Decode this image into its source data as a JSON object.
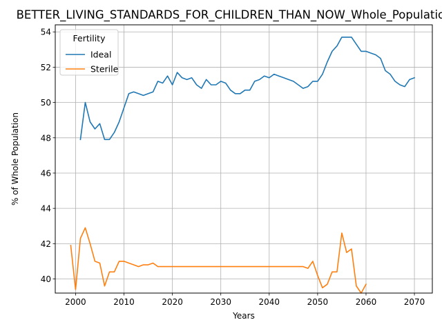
{
  "chart_data": {
    "type": "line",
    "title": "BETTER_LIVING_STANDARDS_FOR_CHILDREN_THAN_NOW_Whole_Population_Sc",
    "xlabel": "Years",
    "ylabel": "% of Whole Population",
    "xlim": [
      1995.8,
      2073.7
    ],
    "ylim": [
      39.2,
      54.4
    ],
    "xticks": [
      2000,
      2010,
      2020,
      2030,
      2040,
      2050,
      2060,
      2070
    ],
    "yticks": [
      40,
      42,
      44,
      46,
      48,
      50,
      52,
      54
    ],
    "grid": true,
    "legend": {
      "title": "Fertility",
      "placement": "top-left"
    },
    "series": [
      {
        "name": "Ideal",
        "color": "#1f77b4",
        "x": [
          2001,
          2002,
          2003,
          2004,
          2005,
          2006,
          2007,
          2008,
          2009,
          2010,
          2011,
          2012,
          2013,
          2014,
          2015,
          2016,
          2017,
          2018,
          2019,
          2020,
          2021,
          2022,
          2023,
          2024,
          2025,
          2026,
          2027,
          2028,
          2029,
          2030,
          2031,
          2032,
          2033,
          2034,
          2035,
          2036,
          2037,
          2038,
          2039,
          2040,
          2041,
          2042,
          2043,
          2044,
          2045,
          2046,
          2047,
          2048,
          2049,
          2050,
          2051,
          2052,
          2053,
          2054,
          2055,
          2056,
          2057,
          2058,
          2059,
          2060,
          2061,
          2062,
          2063,
          2064,
          2065,
          2066,
          2067,
          2068,
          2069,
          2070
        ],
        "values": [
          47.9,
          50.0,
          48.9,
          48.5,
          48.8,
          47.9,
          47.9,
          48.3,
          48.9,
          49.7,
          50.5,
          50.6,
          50.5,
          50.4,
          50.5,
          50.6,
          51.2,
          51.1,
          51.5,
          51.0,
          51.7,
          51.4,
          51.3,
          51.4,
          51.0,
          50.8,
          51.3,
          51.0,
          51.0,
          51.2,
          51.1,
          50.7,
          50.5,
          50.5,
          50.7,
          50.7,
          51.2,
          51.3,
          51.5,
          51.4,
          51.6,
          51.5,
          51.4,
          51.3,
          51.2,
          51.0,
          50.8,
          50.9,
          51.2,
          51.2,
          51.6,
          52.3,
          52.9,
          53.2,
          53.7,
          53.7,
          53.7,
          53.3,
          52.9,
          52.9,
          52.8,
          52.7,
          52.5,
          51.8,
          51.6,
          51.2,
          51.0,
          50.9,
          51.3,
          51.4
        ]
      },
      {
        "name": "Sterile",
        "color": "#ff7f0e",
        "x": [
          1999,
          2000,
          2001,
          2002,
          2003,
          2004,
          2005,
          2006,
          2007,
          2008,
          2009,
          2010,
          2011,
          2012,
          2013,
          2014,
          2015,
          2016,
          2017,
          2018,
          2019,
          2020,
          2021,
          2022,
          2023,
          2024,
          2025,
          2026,
          2027,
          2028,
          2029,
          2030,
          2031,
          2032,
          2033,
          2034,
          2035,
          2036,
          2037,
          2038,
          2039,
          2040,
          2041,
          2042,
          2043,
          2044,
          2045,
          2046,
          2047,
          2048,
          2049,
          2050,
          2051,
          2052,
          2053,
          2054,
          2055,
          2056,
          2057,
          2058,
          2059,
          2060
        ],
        "values": [
          41.9,
          39.4,
          42.3,
          42.9,
          42.0,
          41.0,
          40.9,
          39.6,
          40.4,
          40.4,
          41.0,
          41.0,
          40.9,
          40.8,
          40.7,
          40.8,
          40.8,
          40.9,
          40.7,
          40.7,
          40.7,
          40.7,
          40.7,
          40.7,
          40.7,
          40.7,
          40.7,
          40.7,
          40.7,
          40.7,
          40.7,
          40.7,
          40.7,
          40.7,
          40.7,
          40.7,
          40.7,
          40.7,
          40.7,
          40.7,
          40.7,
          40.7,
          40.7,
          40.7,
          40.7,
          40.7,
          40.7,
          40.7,
          40.7,
          40.6,
          41.0,
          40.2,
          39.5,
          39.7,
          40.4,
          40.4,
          42.6,
          41.5,
          41.7,
          39.6,
          39.2,
          39.7
        ]
      }
    ]
  }
}
